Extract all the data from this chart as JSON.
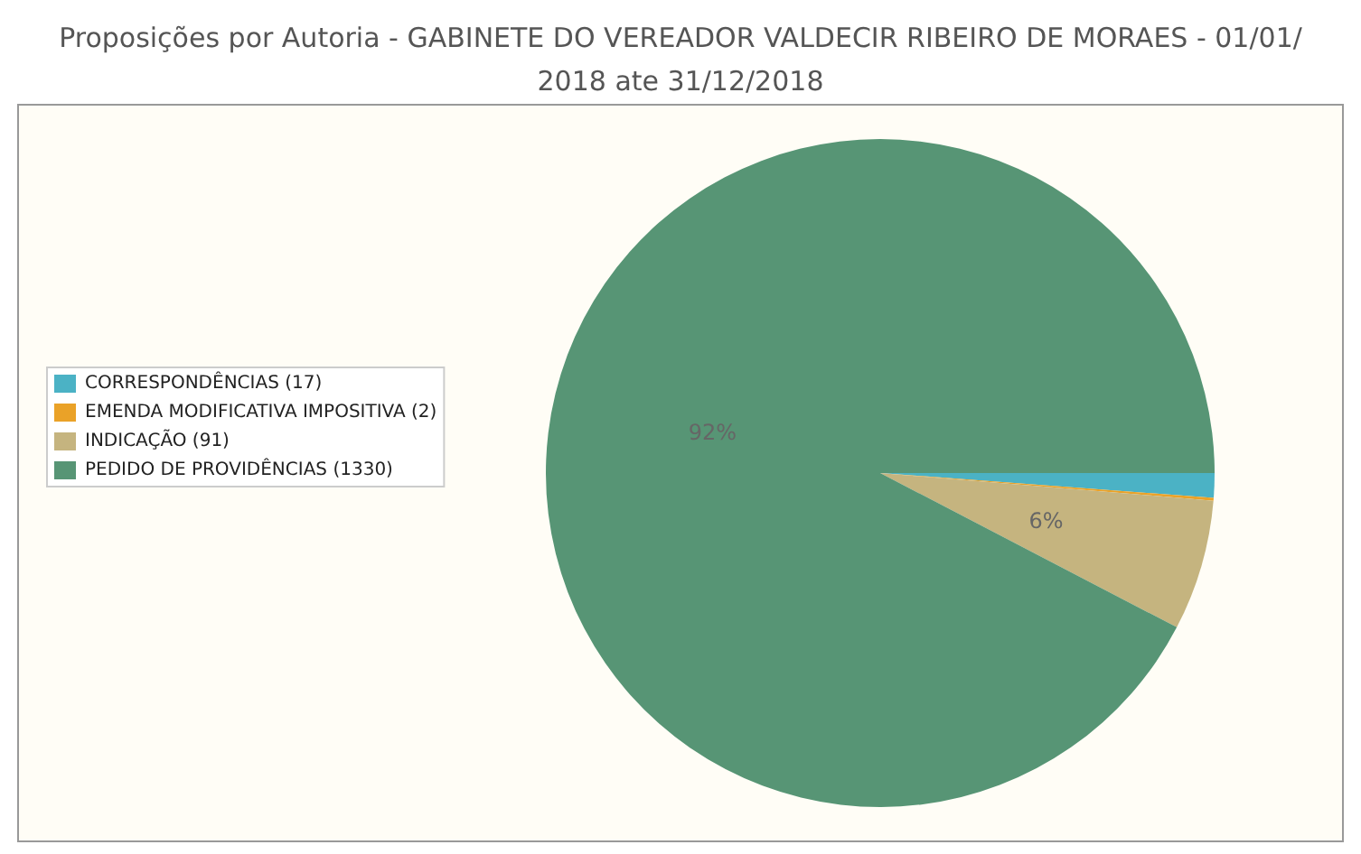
{
  "chart_data": {
    "type": "pie",
    "title": "Proposições por Autoria - GABINETE DO VEREADOR VALDECIR RIBEIRO DE MORAES - 01/01/2018 ate 31/12/2018",
    "categories": [
      "CORRESPONDÊNCIAS (17)",
      "EMENDA MODIFICATIVA IMPOSITIVA (2)",
      "INDICAÇÃO (91)",
      "PEDIDO DE PROVIDÊNCIAS (1330)"
    ],
    "values": [
      1.18,
      0.14,
      6.32,
      92.36
    ],
    "colors": [
      "#4bb2c5",
      "#eaa228",
      "#c5b47f",
      "#579575"
    ],
    "value_labels": [
      null,
      null,
      "6%",
      "92%"
    ],
    "legend": "left"
  }
}
